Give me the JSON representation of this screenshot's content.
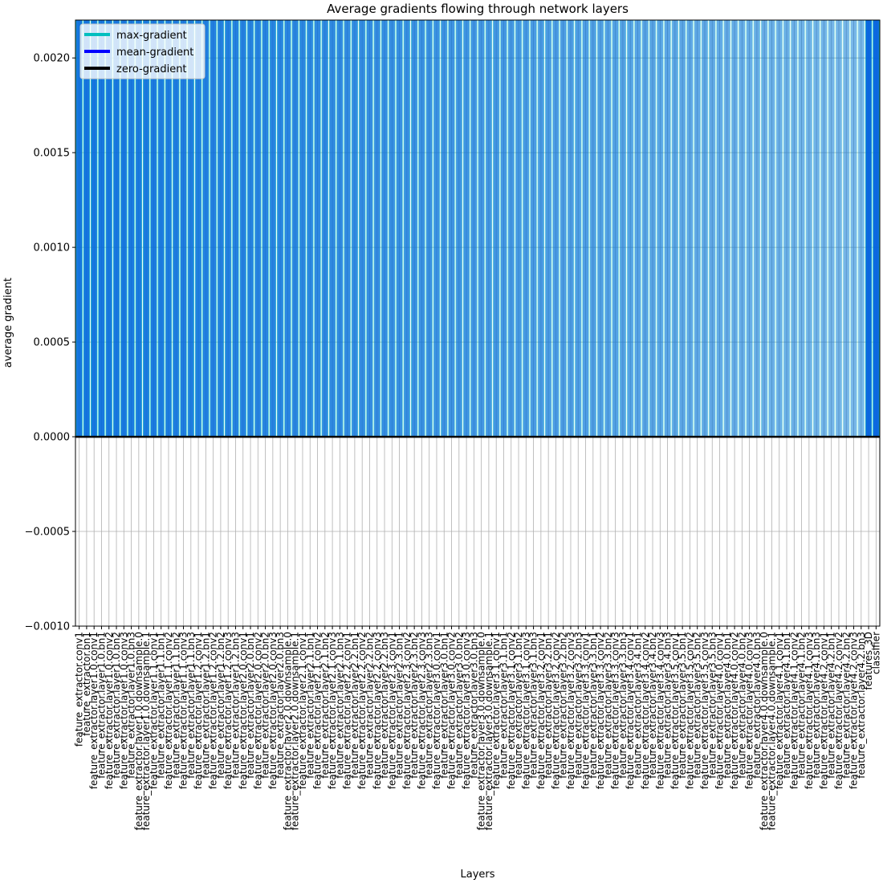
{
  "chart_data": {
    "type": "bar",
    "title": "Average gradients flowing through network layers",
    "xlabel": "Layers",
    "ylabel": "average gradient",
    "ylim": [
      -0.001,
      0.0022
    ],
    "yticks": [
      "0.0020",
      "0.0015",
      "0.0010",
      "0.0005",
      "0.0000",
      "−0.0005",
      "−0.0010"
    ],
    "ytick_values": [
      0.002,
      0.0015,
      0.001,
      0.0005,
      0.0,
      -0.0005,
      -0.001
    ],
    "grid": true,
    "legend_position": "top-left",
    "colors": {
      "max": "#00bfbf",
      "mean": "#0000ff",
      "zero": "#000000"
    },
    "series": [
      {
        "name": "max-gradient",
        "color": "#00bfbf",
        "note_clipped_above": 0.0022
      },
      {
        "name": "mean-gradient",
        "color": "#0000ff"
      },
      {
        "name": "zero-gradient",
        "color": "#000000",
        "value": 0.0
      }
    ],
    "categories": [
      "feature_extractor.conv1",
      "feature_extractor.bn1",
      "feature_extractor.layer1.0.conv1",
      "feature_extractor.layer1.0.bn1",
      "feature_extractor.layer1.0.conv2",
      "feature_extractor.layer1.0.bn2",
      "feature_extractor.layer1.0.conv3",
      "feature_extractor.layer1.0.bn3",
      "feature_extractor.layer1.0.downsample.0",
      "feature_extractor.layer1.0.downsample.1",
      "feature_extractor.layer1.1.conv1",
      "feature_extractor.layer1.1.bn1",
      "feature_extractor.layer1.1.conv2",
      "feature_extractor.layer1.1.bn2",
      "feature_extractor.layer1.1.conv3",
      "feature_extractor.layer1.1.bn3",
      "feature_extractor.layer1.2.conv1",
      "feature_extractor.layer1.2.bn1",
      "feature_extractor.layer1.2.conv2",
      "feature_extractor.layer1.2.bn2",
      "feature_extractor.layer1.2.conv3",
      "feature_extractor.layer1.2.bn3",
      "feature_extractor.layer2.0.conv1",
      "feature_extractor.layer2.0.bn1",
      "feature_extractor.layer2.0.conv2",
      "feature_extractor.layer2.0.bn2",
      "feature_extractor.layer2.0.conv3",
      "feature_extractor.layer2.0.bn3",
      "feature_extractor.layer2.0.downsample.0",
      "feature_extractor.layer2.0.downsample.1",
      "feature_extractor.layer2.1.conv1",
      "feature_extractor.layer2.1.bn1",
      "feature_extractor.layer2.1.conv2",
      "feature_extractor.layer2.1.bn2",
      "feature_extractor.layer2.1.conv3",
      "feature_extractor.layer2.1.bn3",
      "feature_extractor.layer2.2.conv1",
      "feature_extractor.layer2.2.bn1",
      "feature_extractor.layer2.2.conv2",
      "feature_extractor.layer2.2.bn2",
      "feature_extractor.layer2.2.conv3",
      "feature_extractor.layer2.2.bn3",
      "feature_extractor.layer2.3.conv1",
      "feature_extractor.layer2.3.bn1",
      "feature_extractor.layer2.3.conv2",
      "feature_extractor.layer2.3.bn2",
      "feature_extractor.layer2.3.conv3",
      "feature_extractor.layer2.3.bn3",
      "feature_extractor.layer3.0.conv1",
      "feature_extractor.layer3.0.bn1",
      "feature_extractor.layer3.0.conv2",
      "feature_extractor.layer3.0.bn2",
      "feature_extractor.layer3.0.conv3",
      "feature_extractor.layer3.0.bn3",
      "feature_extractor.layer3.0.downsample.0",
      "feature_extractor.layer3.0.downsample.1",
      "feature_extractor.layer3.1.conv1",
      "feature_extractor.layer3.1.bn1",
      "feature_extractor.layer3.1.conv2",
      "feature_extractor.layer3.1.bn2",
      "feature_extractor.layer3.1.conv3",
      "feature_extractor.layer3.1.bn3",
      "feature_extractor.layer3.2.conv1",
      "feature_extractor.layer3.2.bn1",
      "feature_extractor.layer3.2.conv2",
      "feature_extractor.layer3.2.bn2",
      "feature_extractor.layer3.2.conv3",
      "feature_extractor.layer3.2.bn3",
      "feature_extractor.layer3.3.conv1",
      "feature_extractor.layer3.3.bn1",
      "feature_extractor.layer3.3.conv2",
      "feature_extractor.layer3.3.bn2",
      "feature_extractor.layer3.3.conv3",
      "feature_extractor.layer3.3.bn3",
      "feature_extractor.layer3.4.conv1",
      "feature_extractor.layer3.4.bn1",
      "feature_extractor.layer3.4.conv2",
      "feature_extractor.layer3.4.bn2",
      "feature_extractor.layer3.4.conv3",
      "feature_extractor.layer3.4.bn3",
      "feature_extractor.layer3.5.conv1",
      "feature_extractor.layer3.5.bn1",
      "feature_extractor.layer3.5.conv2",
      "feature_extractor.layer3.5.bn2",
      "feature_extractor.layer3.5.conv3",
      "feature_extractor.layer3.5.bn3",
      "feature_extractor.layer4.0.conv1",
      "feature_extractor.layer4.0.bn1",
      "feature_extractor.layer4.0.conv2",
      "feature_extractor.layer4.0.bn2",
      "feature_extractor.layer4.0.conv3",
      "feature_extractor.layer4.0.bn3",
      "feature_extractor.layer4.0.downsample.0",
      "feature_extractor.layer4.0.downsample.1",
      "feature_extractor.layer4.1.conv1",
      "feature_extractor.layer4.1.bn1",
      "feature_extractor.layer4.1.conv2",
      "feature_extractor.layer4.1.bn2",
      "feature_extractor.layer4.1.conv3",
      "feature_extractor.layer4.1.bn3",
      "feature_extractor.layer4.2.conv1",
      "feature_extractor.layer4.2.bn1",
      "feature_extractor.layer4.2.conv2",
      "feature_extractor.layer4.2.bn2",
      "feature_extractor.layer4.2.conv3",
      "feature_extractor.layer4.2.bn3",
      "features_3D",
      "classifier"
    ]
  }
}
